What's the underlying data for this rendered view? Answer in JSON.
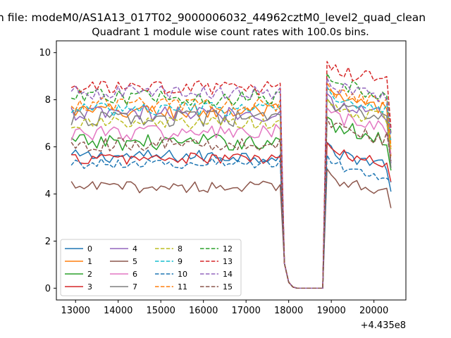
{
  "figure": {
    "suptitle": "n file: modeM0/AS1A13_017T02_9000006032_44962cztM0_level2_quad_clean",
    "title": "Quadrant 1 module wise count rates with 100.0s bins."
  },
  "chart_data": {
    "type": "line",
    "title": "Quadrant 1 module wise count rates with 100.0s bins.",
    "xlabel": "",
    "ylabel": "",
    "x_offset_label": "+4.435e8",
    "xlim": [
      12550,
      20750
    ],
    "ylim": [
      -0.5,
      10.5
    ],
    "x_ticks": [
      13000,
      14000,
      15000,
      16000,
      17000,
      18000,
      19000,
      20000
    ],
    "x_tick_labels": [
      "13000",
      "14000",
      "15000",
      "16000",
      "17000",
      "18000",
      "19000",
      "20000"
    ],
    "y_ticks": [
      0,
      2,
      4,
      6,
      8,
      10
    ],
    "y_tick_labels": [
      "0",
      "2",
      "4",
      "6",
      "8",
      "10"
    ],
    "grid": false,
    "legend": {
      "placement": "lower-left",
      "columns": 4
    },
    "x": {
      "start": 12900,
      "step": 100,
      "end": 20400
    },
    "gap": {
      "drop_start": 17900,
      "low_from": 18000,
      "low_to": 18800,
      "rise_end": 18950,
      "low_values": [
        0.25,
        0.05,
        0.0,
        0.0,
        0.0,
        0.0,
        0.0,
        0.0,
        0.0
      ]
    },
    "series": [
      {
        "name": "0",
        "color": "#1f77b4",
        "dash": "solid",
        "level_before": 5.6,
        "level_after": 5.8,
        "end_value": 4.1,
        "jitter": 0.28
      },
      {
        "name": "1",
        "color": "#ff7f0e",
        "dash": "solid",
        "level_before": 7.5,
        "level_after": 8.1,
        "end_value": 5.6,
        "jitter": 0.35
      },
      {
        "name": "2",
        "color": "#2ca02c",
        "dash": "solid",
        "level_before": 6.2,
        "level_after": 6.9,
        "end_value": 5.0,
        "jitter": 0.35
      },
      {
        "name": "3",
        "color": "#d62728",
        "dash": "solid",
        "level_before": 5.5,
        "level_after": 5.8,
        "end_value": 4.5,
        "jitter": 0.25
      },
      {
        "name": "4",
        "color": "#9467bd",
        "dash": "solid",
        "level_before": 7.4,
        "level_after": 7.9,
        "end_value": 5.3,
        "jitter": 0.35
      },
      {
        "name": "5",
        "color": "#8c564b",
        "dash": "solid",
        "level_before": 4.3,
        "level_after": 4.7,
        "end_value": 3.4,
        "jitter": 0.25
      },
      {
        "name": "6",
        "color": "#e377c2",
        "dash": "solid",
        "level_before": 6.6,
        "level_after": 7.3,
        "end_value": 5.7,
        "jitter": 0.35
      },
      {
        "name": "7",
        "color": "#7f7f7f",
        "dash": "solid",
        "level_before": 7.2,
        "level_after": 7.7,
        "end_value": 5.1,
        "jitter": 0.35
      },
      {
        "name": "8",
        "color": "#bcbd22",
        "dash": "dashed",
        "level_before": 7.0,
        "level_after": 7.7,
        "end_value": 5.9,
        "jitter": 0.3
      },
      {
        "name": "9",
        "color": "#17becf",
        "dash": "dashed",
        "level_before": 7.6,
        "level_after": 8.2,
        "end_value": 6.2,
        "jitter": 0.3
      },
      {
        "name": "10",
        "color": "#1f77b4",
        "dash": "dashed",
        "level_before": 5.3,
        "level_after": 5.3,
        "end_value": 4.5,
        "jitter": 0.22
      },
      {
        "name": "11",
        "color": "#ff7f0e",
        "dash": "dashed",
        "level_before": 7.8,
        "level_after": 8.4,
        "end_value": 6.0,
        "jitter": 0.3
      },
      {
        "name": "12",
        "color": "#2ca02c",
        "dash": "dashed",
        "level_before": 8.1,
        "level_after": 8.8,
        "end_value": 6.6,
        "jitter": 0.35
      },
      {
        "name": "13",
        "color": "#d62728",
        "dash": "dashed",
        "level_before": 8.5,
        "level_after": 9.3,
        "end_value": 6.8,
        "jitter": 0.3
      },
      {
        "name": "14",
        "color": "#9467bd",
        "dash": "dashed",
        "level_before": 8.3,
        "level_after": 8.6,
        "end_value": 6.5,
        "jitter": 0.3
      },
      {
        "name": "15",
        "color": "#8c564b",
        "dash": "dashed",
        "level_before": 6.1,
        "level_after": 6.9,
        "end_value": 5.4,
        "jitter": 0.3
      }
    ]
  }
}
